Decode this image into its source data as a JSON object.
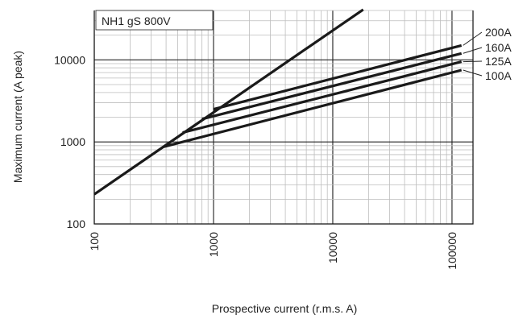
{
  "chart_data": {
    "type": "line",
    "title": "",
    "annotation": "NH1 gS 800V",
    "xlabel": "Prospective current (r.m.s. A)",
    "ylabel": "Maximum current (A peak)",
    "x_scale": "log",
    "y_scale": "log",
    "xlim": [
      100,
      150000
    ],
    "ylim": [
      100,
      40000
    ],
    "x_ticks": [
      "100",
      "1000",
      "10000",
      "100000"
    ],
    "y_ticks": [
      "100",
      "1000",
      "10000"
    ],
    "grid": true,
    "reference_line": {
      "name": "",
      "x": [
        100,
        18000
      ],
      "y": [
        230,
        41000
      ]
    },
    "series": [
      {
        "name": "200A",
        "x": [
          1000,
          120000
        ],
        "y": [
          2500,
          15000
        ]
      },
      {
        "name": "160A",
        "x": [
          800,
          120000
        ],
        "y": [
          1900,
          12000
        ]
      },
      {
        "name": "125A",
        "x": [
          550,
          120000
        ],
        "y": [
          1300,
          9500
        ]
      },
      {
        "name": "100A",
        "x": [
          380,
          120000
        ],
        "y": [
          870,
          7500
        ]
      }
    ]
  }
}
